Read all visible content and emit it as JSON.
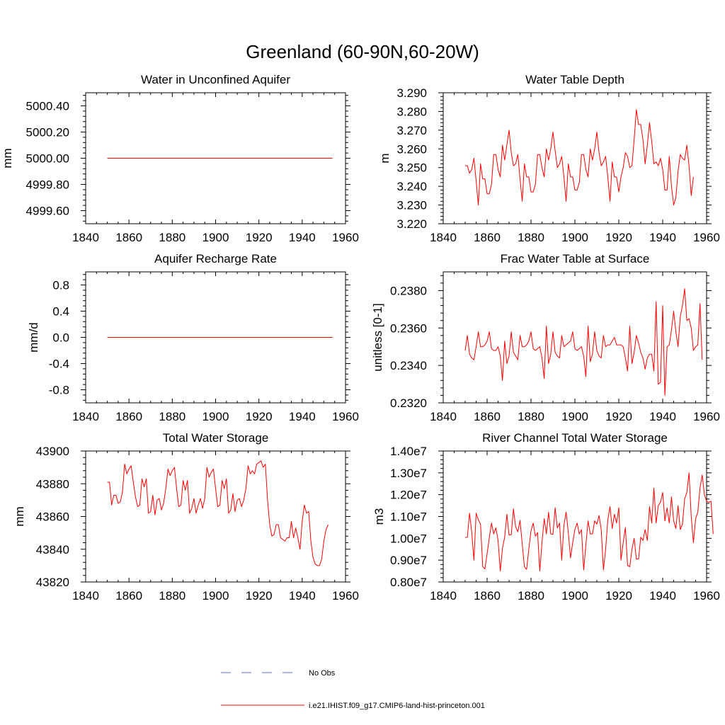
{
  "figure": {
    "title": "Greenland (60-90N,60-20W)"
  },
  "legend": {
    "obs_label": "No Obs",
    "obs_color": "#5a6fd6",
    "model_label": "i.e21.IHIST.f09_g17.CMIP6-land-hist-princeton.001",
    "model_color": "#ff0000"
  },
  "chart_data": [
    {
      "type": "line",
      "title": "Water in Unconfined Aquifer",
      "ylabel": "mm",
      "xlim": [
        1840,
        1960
      ],
      "ylim": [
        4999.5,
        5000.5
      ],
      "xticks": [
        1840,
        1860,
        1880,
        1900,
        1920,
        1940,
        1960
      ],
      "yticks": [
        4999.6,
        4999.8,
        5000.0,
        5000.2,
        5000.4
      ],
      "ytick_labels": [
        "4999.60",
        "4999.80",
        "5000.00",
        "5000.20",
        "5000.40"
      ],
      "x_start": 1850,
      "x_step": 1,
      "values": [
        5000,
        5000,
        5000,
        5000,
        5000,
        5000,
        5000,
        5000,
        5000,
        5000,
        5000,
        5000,
        5000,
        5000,
        5000,
        5000,
        5000,
        5000,
        5000,
        5000,
        5000,
        5000,
        5000,
        5000,
        5000,
        5000,
        5000,
        5000,
        5000,
        5000,
        5000,
        5000,
        5000,
        5000,
        5000,
        5000,
        5000,
        5000,
        5000,
        5000,
        5000,
        5000,
        5000,
        5000,
        5000,
        5000,
        5000,
        5000,
        5000,
        5000,
        5000,
        5000,
        5000,
        5000,
        5000,
        5000,
        5000,
        5000,
        5000,
        5000,
        5000,
        5000,
        5000,
        5000,
        5000,
        5000,
        5000,
        5000,
        5000,
        5000,
        5000,
        5000,
        5000,
        5000,
        5000,
        5000,
        5000,
        5000,
        5000,
        5000,
        5000,
        5000,
        5000,
        5000,
        5000,
        5000,
        5000,
        5000,
        5000,
        5000,
        5000,
        5000,
        5000,
        5000,
        5000,
        5000,
        5000,
        5000,
        5000,
        5000,
        5000,
        5000,
        5000,
        5000,
        5000
      ]
    },
    {
      "type": "line",
      "title": "Water Table Depth",
      "ylabel": "m",
      "xlim": [
        1840,
        1960
      ],
      "ylim": [
        3.22,
        3.29
      ],
      "xticks": [
        1840,
        1860,
        1880,
        1900,
        1920,
        1940,
        1960
      ],
      "yticks": [
        3.22,
        3.23,
        3.24,
        3.25,
        3.26,
        3.27,
        3.28,
        3.29
      ],
      "ytick_labels": [
        "3.220",
        "3.230",
        "3.240",
        "3.250",
        "3.260",
        "3.270",
        "3.280",
        "3.290"
      ],
      "x_start": 1850,
      "x_step": 1,
      "values": [
        3.251,
        3.251,
        3.247,
        3.249,
        3.255,
        3.243,
        3.23,
        3.252,
        3.244,
        3.244,
        3.236,
        3.236,
        3.241,
        3.257,
        3.257,
        3.249,
        3.245,
        3.262,
        3.254,
        3.262,
        3.27,
        3.258,
        3.251,
        3.252,
        3.257,
        3.244,
        3.232,
        3.252,
        3.245,
        3.245,
        3.237,
        3.237,
        3.241,
        3.257,
        3.257,
        3.25,
        3.245,
        3.26,
        3.254,
        3.26,
        3.269,
        3.259,
        3.25,
        3.252,
        3.256,
        3.245,
        3.232,
        3.252,
        3.245,
        3.245,
        3.238,
        3.238,
        3.242,
        3.257,
        3.257,
        3.249,
        3.245,
        3.26,
        3.254,
        3.26,
        3.269,
        3.258,
        3.251,
        3.253,
        3.256,
        3.245,
        3.232,
        3.253,
        3.245,
        3.245,
        3.237,
        3.245,
        3.25,
        3.258,
        3.256,
        3.25,
        3.251,
        3.265,
        3.281,
        3.273,
        3.273,
        3.265,
        3.252,
        3.262,
        3.274,
        3.264,
        3.252,
        3.253,
        3.251,
        3.255,
        3.249,
        3.238,
        3.238,
        3.256,
        3.24,
        3.23,
        3.234,
        3.248,
        3.257,
        3.255,
        3.254,
        3.262,
        3.251,
        3.235,
        3.245
      ]
    },
    {
      "type": "line",
      "title": "Aquifer Recharge Rate",
      "ylabel": "mm/d",
      "xlim": [
        1840,
        1960
      ],
      "ylim": [
        -1,
        1
      ],
      "xticks": [
        1840,
        1860,
        1880,
        1900,
        1920,
        1940,
        1960
      ],
      "yticks": [
        -0.8,
        -0.4,
        0.0,
        0.4,
        0.8
      ],
      "ytick_labels": [
        "-0.8",
        "-0.4",
        "0.0",
        "0.4",
        "0.8"
      ],
      "x_start": 1850,
      "x_step": 1,
      "values": [
        0,
        0,
        0,
        0,
        0,
        0,
        0,
        0,
        0,
        0,
        0,
        0,
        0,
        0,
        0,
        0,
        0,
        0,
        0,
        0,
        0,
        0,
        0,
        0,
        0,
        0,
        0,
        0,
        0,
        0,
        0,
        0,
        0,
        0,
        0,
        0,
        0,
        0,
        0,
        0,
        0,
        0,
        0,
        0,
        0,
        0,
        0,
        0,
        0,
        0,
        0,
        0,
        0,
        0,
        0,
        0,
        0,
        0,
        0,
        0,
        0,
        0,
        0,
        0,
        0,
        0,
        0,
        0,
        0,
        0,
        0,
        0,
        0,
        0,
        0,
        0,
        0,
        0,
        0,
        0,
        0,
        0,
        0,
        0,
        0,
        0,
        0,
        0,
        0,
        0,
        0,
        0,
        0,
        0,
        0,
        0,
        0,
        0,
        0,
        0,
        0,
        0,
        0,
        0,
        0
      ]
    },
    {
      "type": "line",
      "title": "Frac Water Table at Surface",
      "ylabel": "unitless [0-1]",
      "xlim": [
        1840,
        1960
      ],
      "ylim": [
        0.232,
        0.239
      ],
      "xticks": [
        1840,
        1860,
        1880,
        1900,
        1920,
        1940,
        1960
      ],
      "yticks": [
        0.232,
        0.234,
        0.236,
        0.238
      ],
      "ytick_labels": [
        "0.2320",
        "0.2340",
        "0.2360",
        "0.2380"
      ],
      "x_start": 1850,
      "x_step": 1,
      "values": [
        0.2348,
        0.2356,
        0.2346,
        0.2344,
        0.2343,
        0.235,
        0.2358,
        0.235,
        0.235,
        0.2351,
        0.2353,
        0.2358,
        0.2349,
        0.2348,
        0.2348,
        0.235,
        0.2345,
        0.2332,
        0.2353,
        0.2341,
        0.2345,
        0.2358,
        0.2347,
        0.2345,
        0.2343,
        0.2356,
        0.235,
        0.235,
        0.2351,
        0.2353,
        0.2358,
        0.2349,
        0.2348,
        0.2349,
        0.235,
        0.2344,
        0.2333,
        0.2361,
        0.2341,
        0.2346,
        0.2358,
        0.2347,
        0.2345,
        0.2344,
        0.2356,
        0.235,
        0.2351,
        0.2352,
        0.2353,
        0.2358,
        0.2349,
        0.2348,
        0.2349,
        0.235,
        0.2345,
        0.2334,
        0.2361,
        0.2342,
        0.2346,
        0.2358,
        0.2348,
        0.2345,
        0.2344,
        0.2356,
        0.235,
        0.2351,
        0.2351,
        0.2353,
        0.2355,
        0.2351,
        0.2351,
        0.2351,
        0.235,
        0.2344,
        0.2337,
        0.2361,
        0.2341,
        0.2347,
        0.2356,
        0.2352,
        0.2347,
        0.2344,
        0.2338,
        0.2344,
        0.2346,
        0.2346,
        0.2337,
        0.2374,
        0.233,
        0.2331,
        0.2372,
        0.2324,
        0.235,
        0.2351,
        0.2359,
        0.2369,
        0.2358,
        0.235,
        0.2366,
        0.2372,
        0.2381,
        0.2364,
        0.2365,
        0.236,
        0.2348,
        0.235,
        0.2351,
        0.2373,
        0.2343
      ]
    },
    {
      "type": "line",
      "title": "Total Water Storage",
      "ylabel": "mm",
      "xlim": [
        1840,
        1960
      ],
      "ylim": [
        43820,
        43900
      ],
      "xticks": [
        1840,
        1860,
        1880,
        1900,
        1920,
        1940,
        1960
      ],
      "yticks": [
        43820,
        43840,
        43860,
        43880,
        43900
      ],
      "ytick_labels": [
        "43820",
        "43840",
        "43860",
        "43880",
        "43900"
      ],
      "x_start": 1850,
      "x_step": 1,
      "values": [
        43881,
        43881,
        43867,
        43873,
        43873,
        43868,
        43869,
        43875,
        43892,
        43886,
        43889,
        43891,
        43881,
        43872,
        43866,
        43867,
        43883,
        43878,
        43883,
        43862,
        43863,
        43873,
        43861,
        43870,
        43871,
        43864,
        43868,
        43877,
        43889,
        43885,
        43888,
        43890,
        43877,
        43866,
        43867,
        43882,
        43876,
        43882,
        43862,
        43865,
        43871,
        43862,
        43867,
        43871,
        43865,
        43871,
        43890,
        43884,
        43887,
        43889,
        43877,
        43866,
        43867,
        43882,
        43877,
        43883,
        43862,
        43864,
        43874,
        43863,
        43870,
        43871,
        43866,
        43870,
        43877,
        43891,
        43886,
        43888,
        43886,
        43892,
        43893,
        43894,
        43890,
        43892,
        43870,
        43855,
        43848,
        43849,
        43855,
        43855,
        43847,
        43846,
        43845,
        43847,
        43847,
        43857,
        43847,
        43853,
        43847,
        43840,
        43857,
        43867,
        43862,
        43863,
        43845,
        43835,
        43831,
        43830,
        43830,
        43834,
        43845,
        43852,
        43855
      ]
    },
    {
      "type": "line",
      "title": "River Channel Total Water Storage",
      "ylabel": "m3",
      "xlim": [
        1840,
        1960
      ],
      "ylim": [
        8000000,
        14000000
      ],
      "xticks": [
        1840,
        1860,
        1880,
        1900,
        1920,
        1940,
        1960
      ],
      "yticks": [
        8000000,
        9000000,
        10000000,
        11000000,
        12000000,
        13000000,
        14000000
      ],
      "ytick_labels": [
        "0.80e7",
        "0.90e7",
        "1.00e7",
        "1.10e7",
        "1.20e7",
        "1.30e7",
        "1.40e7"
      ],
      "x_start": 1850,
      "x_step": 1,
      "values": [
        10040000,
        10050000,
        11150000,
        10280000,
        9000000,
        11150000,
        10850000,
        10650000,
        8700000,
        8600000,
        9300000,
        10020000,
        10700000,
        10200000,
        10480000,
        9900000,
        8500000,
        9550000,
        10050000,
        11100000,
        10150000,
        10170000,
        11350000,
        10530000,
        10300000,
        10820000,
        9750000,
        8700000,
        8580000,
        9500000,
        10350000,
        10700000,
        10100000,
        10260000,
        8500000,
        9800000,
        10900000,
        10200000,
        11200000,
        10200000,
        10180000,
        11400000,
        10470000,
        10700000,
        9000000,
        10600000,
        11200000,
        10270000,
        9100000,
        9800000,
        10400000,
        10700000,
        10200000,
        10400000,
        8550000,
        9700000,
        10800000,
        10200000,
        10200000,
        10800000,
        10650000,
        11050000,
        10400000,
        8550000,
        9500000,
        10850000,
        11450000,
        10450000,
        11100000,
        10700000,
        11400000,
        9000000,
        9800000,
        10500000,
        8750000,
        8700000,
        9500000,
        10000000,
        9050000,
        9050000,
        10050000,
        9900000,
        10400000,
        9900000,
        11450000,
        10700000,
        12300000,
        10700000,
        11500000,
        11650000,
        12100000,
        10800000,
        11400000,
        10700000,
        11900000,
        10800000,
        10450000,
        11500000,
        10400000,
        10650000,
        11800000,
        12100000,
        13000000,
        11000000,
        9800000,
        10900000,
        11200000,
        12300000,
        12900000,
        12000000,
        11700000,
        11650000,
        11700000,
        10200000
      ]
    }
  ]
}
